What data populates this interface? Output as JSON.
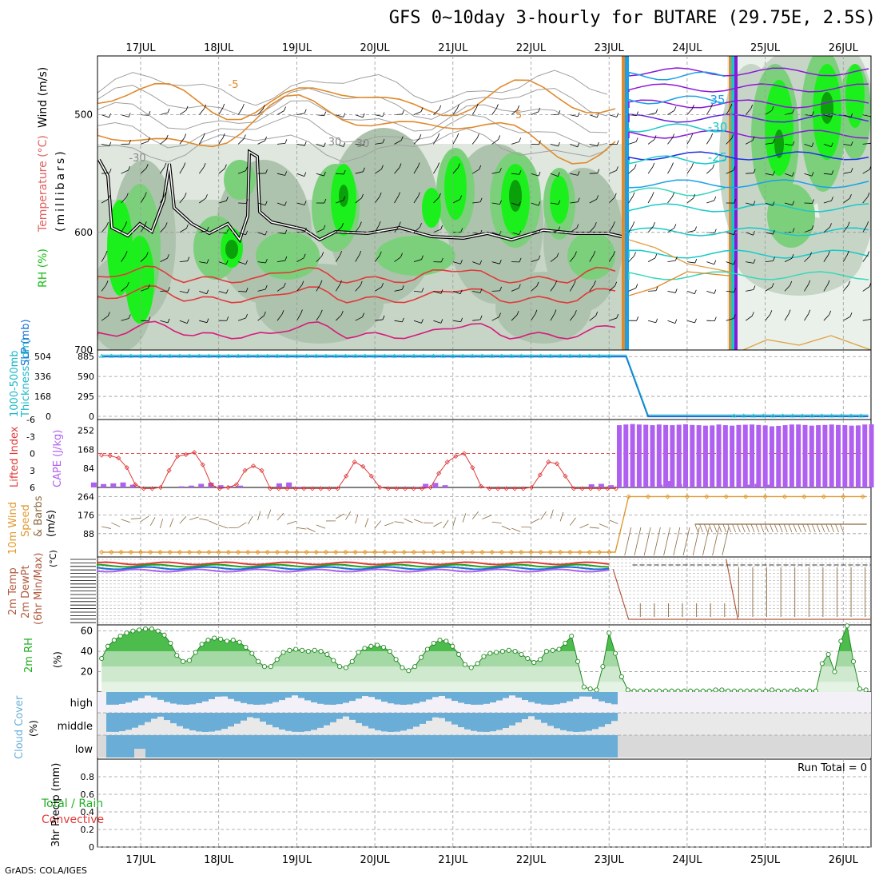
{
  "title": "GFS 0~10day 3-hourly for BUTARE (29.75E, 2.5S)",
  "credit": "GrADS: COLA/IGES",
  "chart_data": [
    {
      "id": "upper-air",
      "type": "heatmap",
      "title": "Wind / Temperature / RH cross-section",
      "x_ticks": [
        "17JUL",
        "18JUL",
        "19JUL",
        "20JUL",
        "21JUL",
        "22JUL",
        "23JUL",
        "24JUL",
        "25JUL",
        "26JUL"
      ],
      "y_ticks": [
        500,
        600,
        700
      ],
      "ylabel": "(millibars)",
      "ylabel_parts": {
        "rh": "RH (%)",
        "temperature": "Temperature (°C)",
        "wind": "Wind (m/s)"
      },
      "ylim": [
        450,
        700
      ],
      "contour_labels": [
        "-5",
        "5",
        "-30",
        "30",
        "30",
        "35",
        "-30",
        "-25"
      ]
    },
    {
      "id": "thickness-slp",
      "type": "line",
      "ylabel": [
        "1000-500mb",
        "Thickness (dm)",
        "SLP (mb)"
      ],
      "left_ticks": [
        504,
        336,
        168,
        0
      ],
      "right_ticks": [
        885,
        590,
        295,
        0
      ],
      "ylim": [
        0,
        935
      ],
      "x": [
        0,
        0.5,
        1,
        1.5,
        2,
        2.5,
        3,
        3.5,
        4,
        4.5,
        5,
        5.5,
        6,
        6.5,
        6.72,
        7.0,
        7.5,
        8,
        8.5,
        9,
        9.5,
        9.82
      ],
      "series": [
        {
          "name": "SLP",
          "values": [
            885,
            885,
            885,
            885,
            885,
            885,
            885,
            885,
            885,
            885,
            885,
            885,
            885,
            885,
            885,
            0,
            0,
            0,
            0,
            0,
            0,
            0
          ]
        }
      ]
    },
    {
      "id": "li-cape",
      "type": "bar",
      "ylabel": [
        "Lifted Index",
        "CAPE (J/kg)"
      ],
      "left_ticks": [
        "-6",
        "-3",
        "0",
        "3",
        "6"
      ],
      "right_ticks": [
        252,
        168,
        84
      ],
      "cape_ylim": [
        0,
        300
      ],
      "li_ylim": [
        6,
        -6
      ],
      "x_start_day": 16.4,
      "step_days": 0.125,
      "cape_values": [
        22,
        15,
        18,
        22,
        12,
        0,
        0,
        0,
        0,
        5,
        8,
        16,
        21,
        10,
        6,
        8,
        0,
        0,
        0,
        18,
        22,
        3,
        0,
        0,
        0,
        0,
        0,
        0,
        0,
        0,
        0,
        0,
        0,
        3,
        16,
        20,
        10,
        0,
        0,
        0,
        0,
        0,
        0,
        0,
        0,
        0,
        0,
        0,
        0,
        0,
        0,
        14,
        16,
        10,
        0,
        0,
        0,
        5,
        12,
        28,
        15,
        3,
        0,
        0,
        0,
        0,
        3,
        12,
        16,
        12,
        0,
        0,
        0,
        0,
        0,
        0,
        0,
        0,
        0,
        0,
        0,
        0,
        0,
        0,
        0,
        0,
        0,
        0,
        0,
        0,
        0,
        0,
        0,
        0,
        0,
        0,
        0,
        0,
        0,
        0,
        0,
        0,
        0,
        0,
        0,
        0,
        0,
        0,
        0,
        0,
        0,
        0,
        0,
        0,
        0,
        0,
        0,
        0,
        0,
        0,
        0,
        0,
        0,
        0
      ],
      "cape_high_values": [
        275,
        278,
        280,
        278,
        277,
        275,
        278,
        276,
        275,
        277,
        279,
        276,
        275,
        273,
        274,
        278,
        275,
        273,
        276,
        277,
        278,
        276,
        274,
        270,
        272,
        275,
        278,
        278,
        276,
        273,
        275,
        276,
        278,
        276,
        275,
        273,
        274,
        278,
        279
      ],
      "li_values": [
        0.3,
        0.4,
        0.8,
        2.5,
        5.5,
        6.8,
        6.5,
        6,
        3,
        0.5,
        0.2,
        -0.2,
        2,
        5.5,
        6.5,
        6,
        5.5,
        3,
        2.2,
        3,
        6.5,
        6.5,
        6.2,
        6.5,
        6.5,
        6.4,
        6.5,
        6.3,
        6.4,
        4,
        1.5,
        2.3,
        4,
        6,
        6.3,
        6.4,
        6.2,
        6.5,
        6.5,
        6,
        3.5,
        1.5,
        0.5,
        0,
        2.5,
        5.8,
        6.5,
        6.4,
        6.2,
        6.4,
        6.5,
        6,
        3.8,
        1.5,
        1.8,
        4,
        6.2,
        6.4,
        6.2,
        6.5,
        6.3,
        6.5
      ]
    },
    {
      "id": "wind-10m",
      "type": "line",
      "ylabel": [
        "10m Wind",
        "Speed",
        "& Barbs",
        "(m/s)"
      ],
      "left_ticks": [
        264,
        176,
        88
      ],
      "ylim": [
        0,
        300
      ],
      "speed_low": 0,
      "speed_high": 264,
      "transition_day": 23.1
    },
    {
      "id": "temp-2m",
      "type": "line",
      "ylabel": [
        "2m Temp",
        "2m DewPt",
        "(6hr Min/Max)",
        "(°C)"
      ],
      "note": "dense overlapping tick labels",
      "transition_day": 23.05
    },
    {
      "id": "rh-2m",
      "type": "area",
      "ylabel": [
        "2m RH",
        "(%)"
      ],
      "left_ticks": [
        60,
        40,
        20
      ],
      "ylim": [
        0,
        66
      ],
      "x_start_day": 16.5,
      "step_days": 0.125,
      "values": [
        33,
        45,
        51,
        55,
        58,
        60,
        61,
        62,
        62,
        60,
        56,
        48,
        36,
        30,
        31,
        39,
        47,
        51,
        53,
        52,
        50,
        51,
        49,
        44,
        38,
        30,
        25,
        25,
        32,
        39,
        41,
        42,
        41,
        40,
        41,
        40,
        37,
        31,
        25,
        24,
        30,
        39,
        43,
        45,
        46,
        44,
        40,
        32,
        24,
        21,
        25,
        34,
        42,
        48,
        51,
        50,
        45,
        37,
        27,
        24,
        28,
        35,
        38,
        39,
        40,
        41,
        40,
        37,
        33,
        29,
        32,
        40,
        41,
        42,
        48,
        55,
        30,
        5,
        3,
        2,
        25,
        58,
        38,
        15,
        2,
        1,
        1,
        1,
        1,
        1,
        1,
        1,
        1,
        1,
        1,
        1,
        1,
        1,
        2,
        2,
        1,
        1,
        1,
        1,
        1,
        1,
        1,
        2,
        1,
        1,
        1,
        2,
        1,
        1,
        1,
        28,
        37,
        20,
        50,
        65,
        30,
        3,
        2
      ]
    },
    {
      "id": "cloud-cover",
      "type": "bar",
      "ylabel": [
        "Cloud Cover",
        "(%)"
      ],
      "levels": [
        "high",
        "middle",
        "low"
      ],
      "transition_day": 23.05
    },
    {
      "id": "precip",
      "type": "bar",
      "ylabel": [
        "Total / Rain",
        "Convective",
        "3hr Precip (mm)"
      ],
      "left_ticks": [
        0.8,
        0.6,
        0.4,
        0.2,
        0
      ],
      "ylim": [
        0,
        1
      ],
      "run_total": "Run Total = 0",
      "x_ticks": [
        "17JUL",
        "18JUL",
        "19JUL",
        "20JUL",
        "21JUL",
        "22JUL",
        "23JUL",
        "24JUL",
        "25JUL",
        "26JUL"
      ],
      "values": []
    }
  ]
}
